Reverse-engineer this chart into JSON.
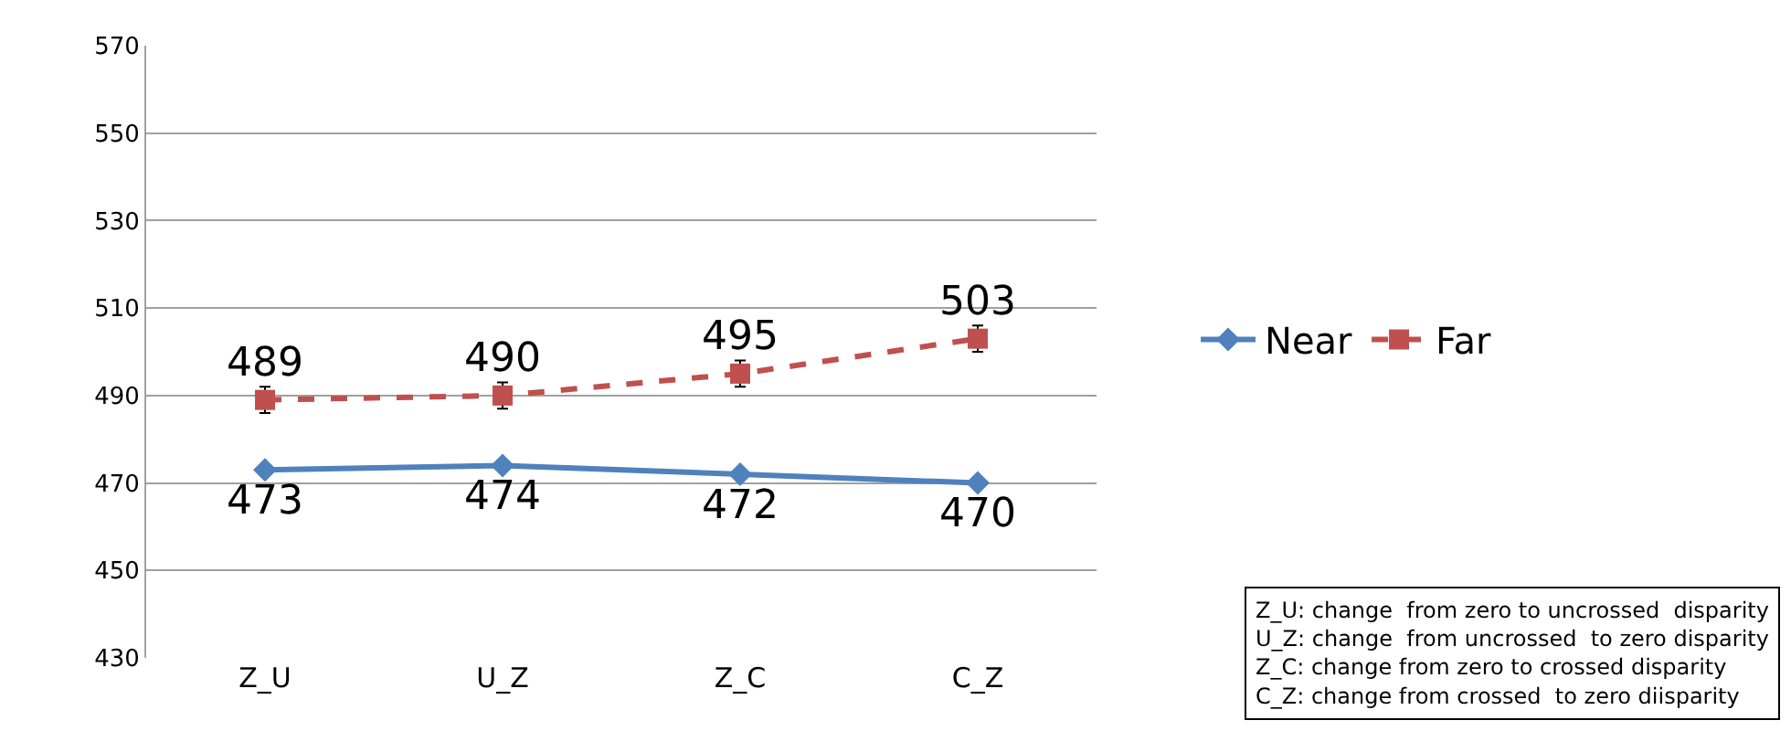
{
  "chart_data": {
    "type": "line",
    "categories": [
      "Z_U",
      "U_Z",
      "Z_C",
      "C_Z"
    ],
    "series": [
      {
        "name": "Near",
        "color": "#4f81bd",
        "values": [
          473,
          474,
          472,
          470
        ],
        "marker": "diamond",
        "line_style": "solid"
      },
      {
        "name": "Far",
        "color": "#c0504d",
        "values": [
          489,
          490,
          495,
          503
        ],
        "errors": [
          3,
          3,
          3,
          3
        ],
        "marker": "square",
        "line_style": "dashed"
      }
    ],
    "ylim": [
      430,
      570
    ],
    "yticks": [
      430,
      450,
      470,
      490,
      510,
      530,
      550,
      570
    ],
    "grid": "y",
    "legend": "right",
    "data_labels": true,
    "annotations": [
      "Z_U: change  from zero to uncrossed  disparity",
      "U_Z: change  from uncrossed  to zero disparity",
      "Z_C: change from zero to crossed disparity",
      "C_Z: change from crossed  to zero diisparity"
    ]
  }
}
